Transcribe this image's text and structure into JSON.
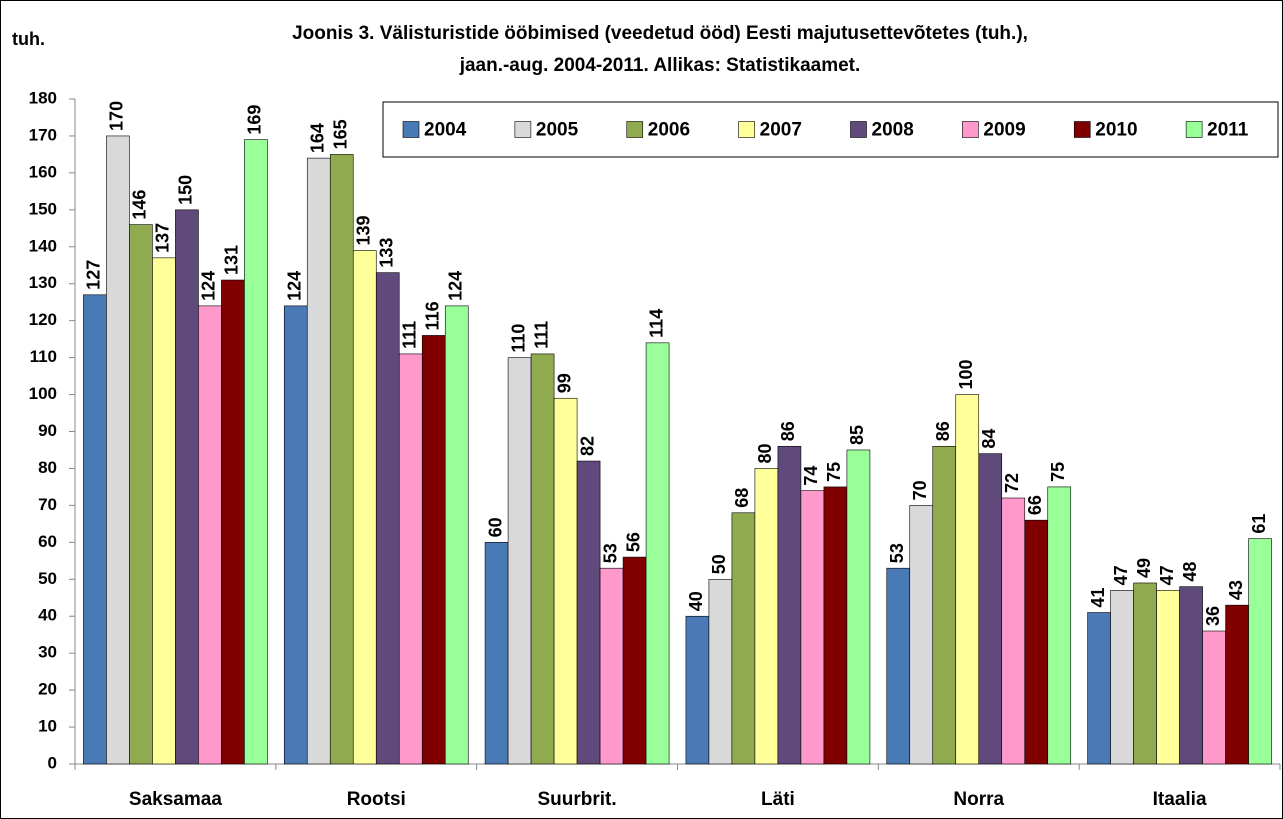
{
  "chart_data": {
    "type": "bar",
    "title": [
      "Joonis 3. Välisturistide  ööbimised (veedetud ööd) Eesti majutusettevõtetes (tuh.),",
      "jaan.-aug.  2004-2011. Allikas: Statistikaamet."
    ],
    "y_label": "tuh.",
    "categories": [
      "Saksamaa",
      "Rootsi",
      "Suurbrit.",
      "Läti",
      "Norra",
      "Itaalia"
    ],
    "series": [
      {
        "name": "2004",
        "color": "#4a7ab5",
        "values": [
          127,
          124,
          60,
          40,
          53,
          41
        ]
      },
      {
        "name": "2005",
        "color": "#d9d9d9",
        "values": [
          170,
          164,
          110,
          50,
          70,
          47
        ]
      },
      {
        "name": "2006",
        "color": "#8faa4f",
        "values": [
          146,
          165,
          111,
          68,
          86,
          49
        ]
      },
      {
        "name": "2007",
        "color": "#ffff99",
        "values": [
          137,
          139,
          99,
          80,
          100,
          47
        ]
      },
      {
        "name": "2008",
        "color": "#604a7b",
        "values": [
          150,
          133,
          82,
          86,
          84,
          48
        ]
      },
      {
        "name": "2009",
        "color": "#ff99cc",
        "values": [
          124,
          111,
          53,
          74,
          72,
          36
        ]
      },
      {
        "name": "2010",
        "color": "#800000",
        "values": [
          131,
          116,
          56,
          75,
          66,
          43
        ]
      },
      {
        "name": "2011",
        "color": "#99ff99",
        "values": [
          169,
          124,
          114,
          85,
          75,
          61
        ]
      }
    ],
    "ylim": [
      0,
      180
    ],
    "yticks": [
      0,
      10,
      20,
      30,
      40,
      50,
      60,
      70,
      80,
      90,
      100,
      110,
      120,
      130,
      140,
      150,
      160,
      170,
      180
    ],
    "grid": false,
    "legend": "top right",
    "data_labels": true
  }
}
